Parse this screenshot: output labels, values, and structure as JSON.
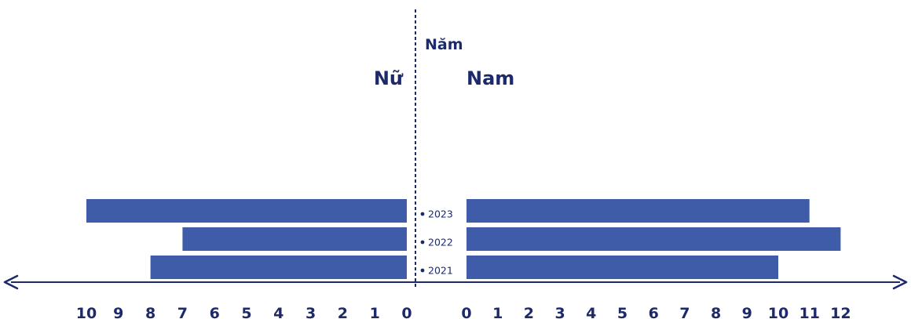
{
  "chart_data": {
    "type": "bar",
    "orientation": "horizontal",
    "layout": "back-to-back",
    "axis_title": "Năm",
    "left_label": "Nữ",
    "right_label": "Nam",
    "categories": [
      "2023",
      "2022",
      "2021"
    ],
    "series": [
      {
        "name": "Nữ",
        "side": "left",
        "values": [
          10,
          7,
          8
        ]
      },
      {
        "name": "Nam",
        "side": "right",
        "values": [
          11,
          12,
          10
        ]
      }
    ],
    "left_ticks": [
      10,
      9,
      8,
      7,
      6,
      5,
      4,
      3,
      2,
      1,
      0
    ],
    "right_ticks": [
      0,
      1,
      2,
      3,
      4,
      5,
      6,
      7,
      8,
      9,
      10,
      11,
      12
    ],
    "bar_color": "#3e5ca8",
    "axis_color": "#1c2a6b"
  }
}
